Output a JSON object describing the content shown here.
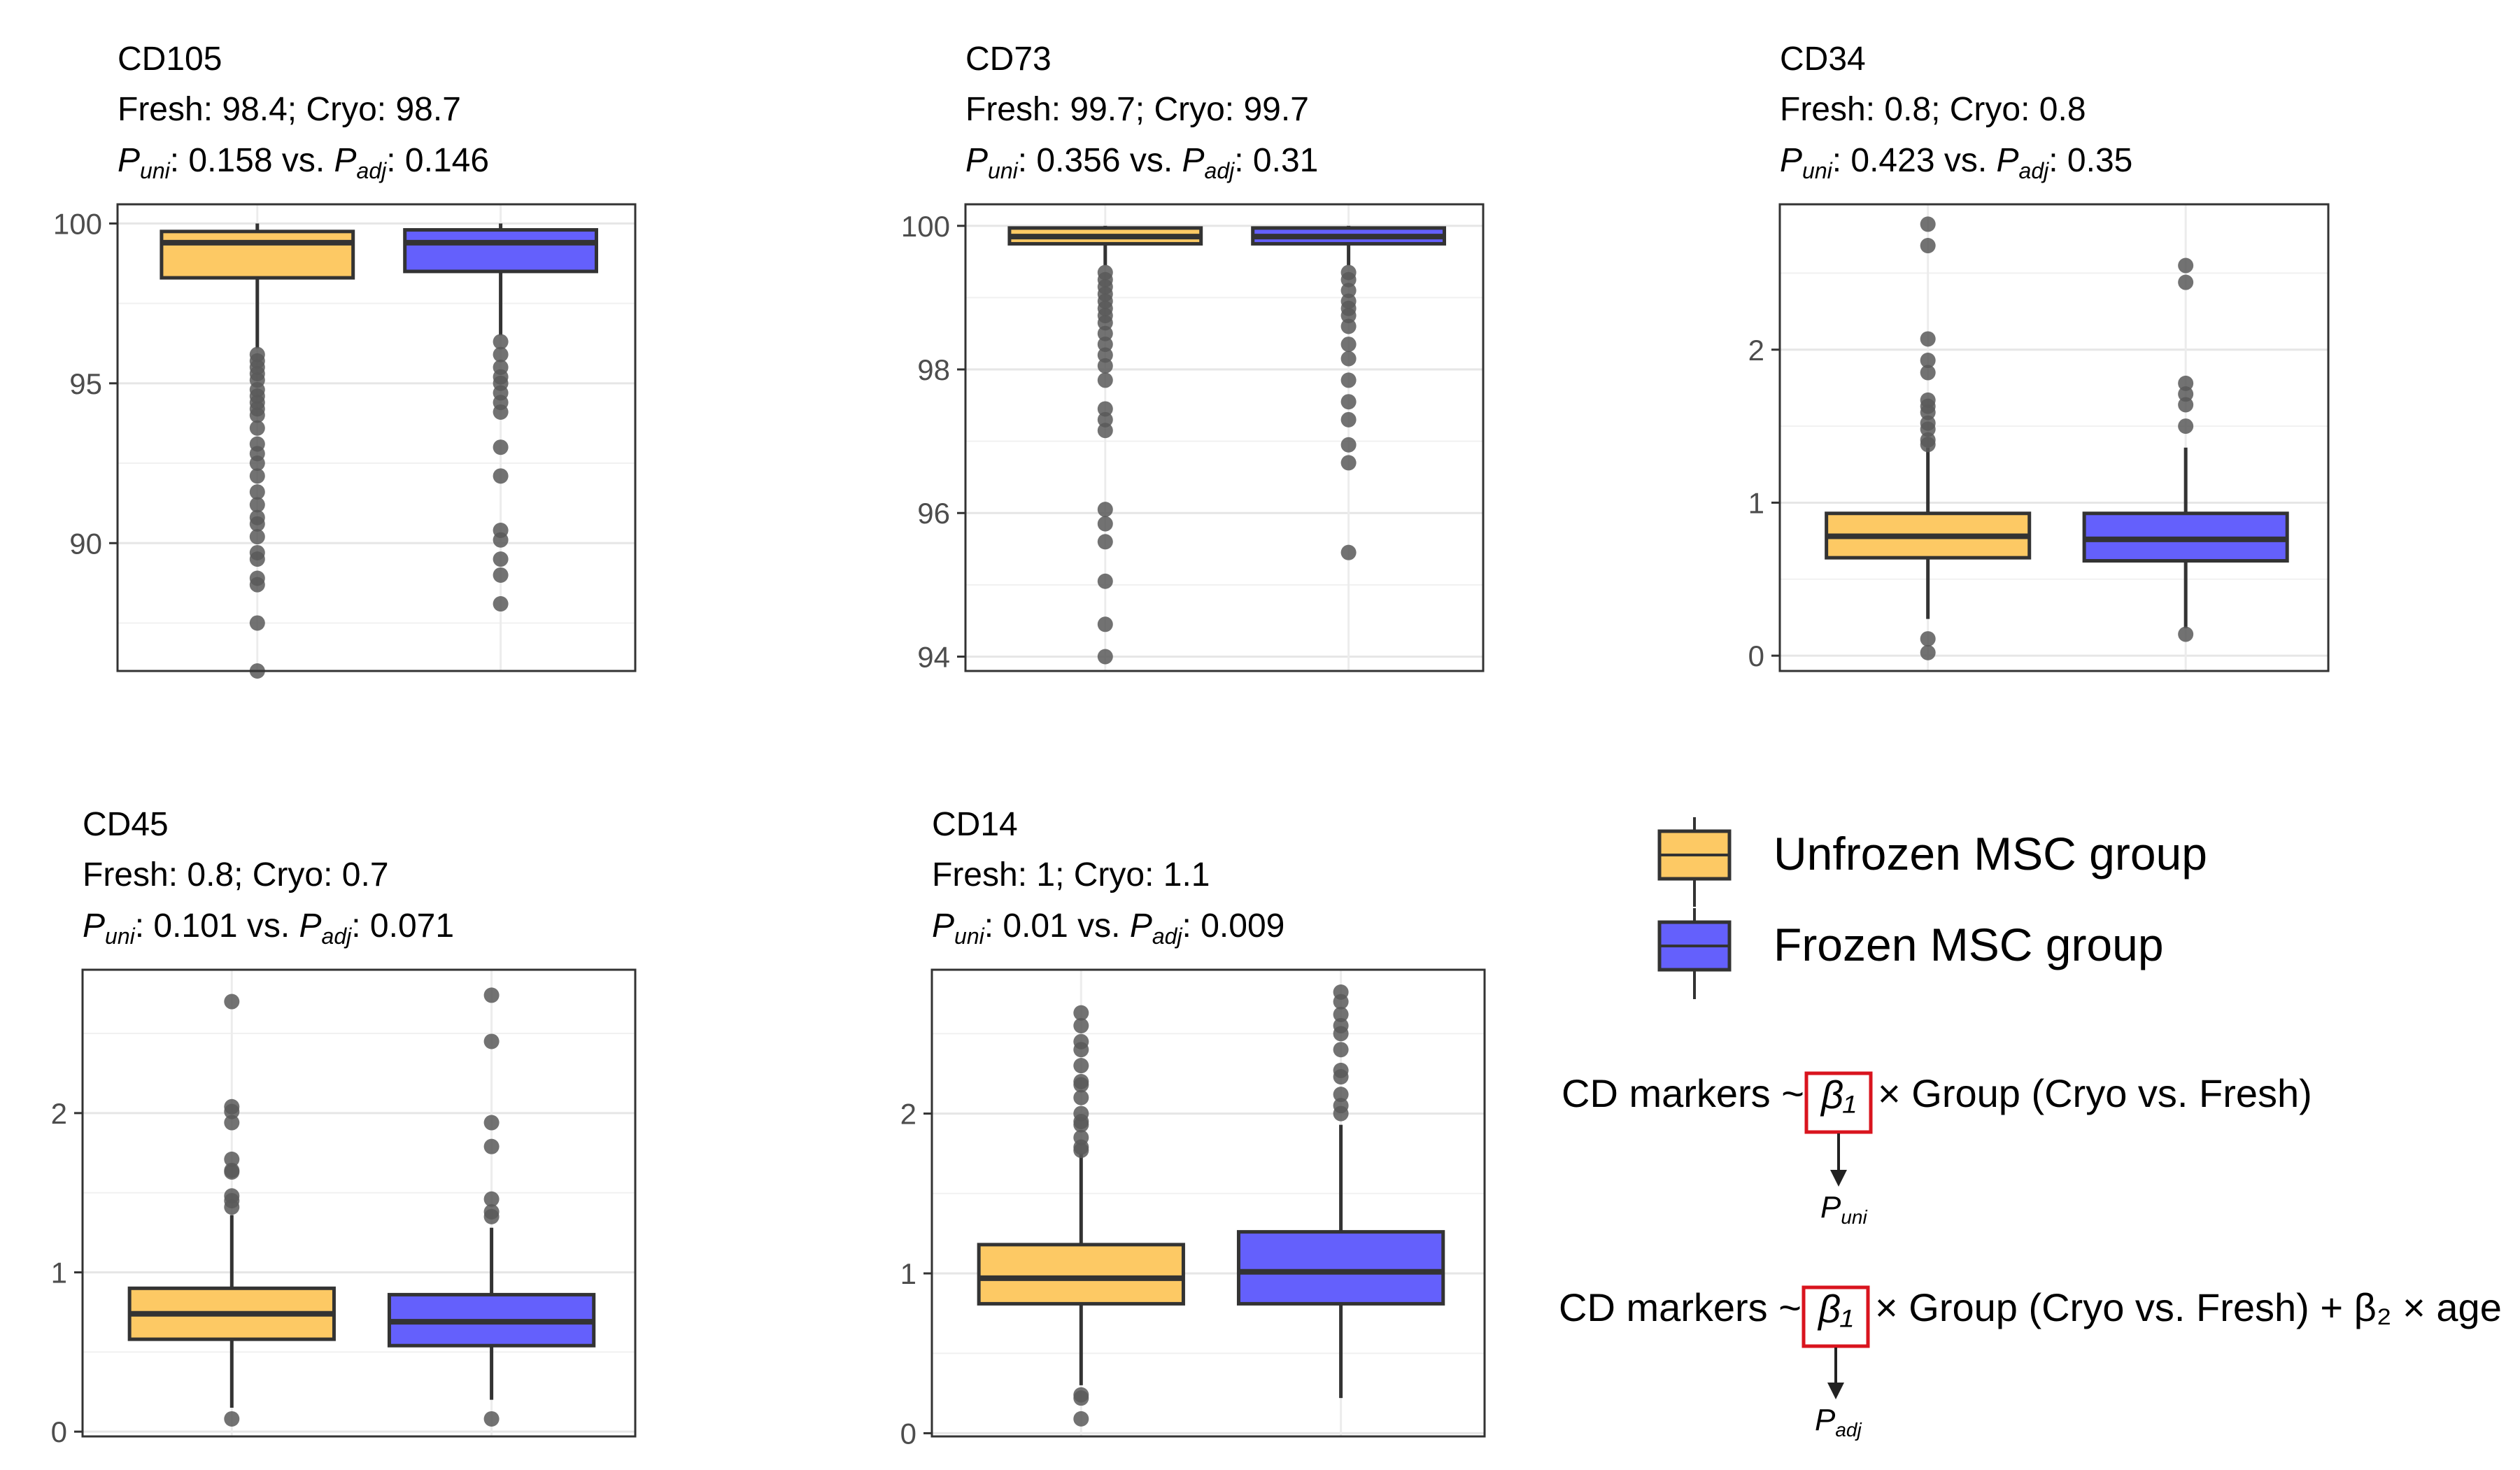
{
  "chart_data": [
    {
      "type": "box",
      "title": "CD105",
      "stats_line": "Fresh: 98.4; Cryo: 98.7",
      "p_values": {
        "p_uni": "0.158",
        "p_adj": "0.146"
      },
      "ylim": [
        86,
        100.6
      ],
      "yticks": [
        90,
        95,
        100
      ],
      "groups": [
        {
          "name": "Fresh",
          "q1": 98.3,
          "median": 99.4,
          "q3": 99.75,
          "whisker_low": 96.1,
          "whisker_high": 100,
          "outliers": [
            95.9,
            95.7,
            95.5,
            95.3,
            95.1,
            94.8,
            94.6,
            94.4,
            94.2,
            94.0,
            93.6,
            93.1,
            92.8,
            92.5,
            92.1,
            91.6,
            91.2,
            90.8,
            90.6,
            90.2,
            89.7,
            89.5,
            88.9,
            88.7,
            87.5,
            86.0
          ]
        },
        {
          "name": "Cryo",
          "q1": 98.5,
          "median": 99.4,
          "q3": 99.8,
          "whisker_low": 96.5,
          "whisker_high": 100,
          "outliers": [
            96.3,
            95.9,
            95.5,
            95.2,
            95.0,
            94.7,
            94.4,
            94.1,
            93.0,
            92.1,
            90.4,
            90.1,
            89.5,
            89.0,
            88.1
          ]
        }
      ]
    },
    {
      "type": "box",
      "title": "CD73",
      "stats_line": "Fresh: 99.7; Cryo: 99.7",
      "p_values": {
        "p_uni": "0.356",
        "p_adj": "0.31"
      },
      "ylim": [
        93.8,
        100.3
      ],
      "yticks": [
        94,
        96,
        98,
        100
      ],
      "groups": [
        {
          "name": "Fresh",
          "q1": 99.75,
          "median": 99.85,
          "q3": 99.97,
          "whisker_low": 99.45,
          "whisker_high": 100,
          "outliers": [
            99.35,
            99.25,
            99.15,
            99.05,
            98.95,
            98.85,
            98.75,
            98.65,
            98.5,
            98.35,
            98.2,
            98.05,
            97.85,
            97.45,
            97.3,
            97.15,
            96.05,
            95.85,
            95.6,
            95.05,
            94.45,
            94.0
          ]
        },
        {
          "name": "Cryo",
          "q1": 99.75,
          "median": 99.85,
          "q3": 99.97,
          "whisker_low": 99.45,
          "whisker_high": 100,
          "outliers": [
            99.35,
            99.25,
            99.1,
            98.95,
            98.85,
            98.75,
            98.6,
            98.35,
            98.15,
            97.85,
            97.55,
            97.3,
            96.95,
            96.7,
            95.45
          ]
        }
      ]
    },
    {
      "type": "box",
      "title": "CD34",
      "stats_line": "Fresh: 0.8; Cryo: 0.8",
      "p_values": {
        "p_uni": "0.423",
        "p_adj": "0.35"
      },
      "ylim": [
        -0.1,
        2.95
      ],
      "yticks": [
        0,
        1,
        2
      ],
      "groups": [
        {
          "name": "Fresh",
          "q1": 0.64,
          "median": 0.78,
          "q3": 0.93,
          "whisker_low": 0.24,
          "whisker_high": 1.36,
          "outliers": [
            2.82,
            2.68,
            2.07,
            1.93,
            1.85,
            1.67,
            1.63,
            1.59,
            1.52,
            1.48,
            1.41,
            1.38,
            0.11,
            0.02
          ]
        },
        {
          "name": "Cryo",
          "q1": 0.62,
          "median": 0.76,
          "q3": 0.93,
          "whisker_low": 0.18,
          "whisker_high": 1.36,
          "outliers": [
            2.55,
            2.44,
            1.78,
            1.71,
            1.64,
            1.5,
            0.14
          ]
        }
      ]
    },
    {
      "type": "box",
      "title": "CD45",
      "stats_line": "Fresh: 0.8; Cryo: 0.7",
      "p_values": {
        "p_uni": "0.101",
        "p_adj": "0.071"
      },
      "ylim": [
        -0.03,
        2.9
      ],
      "yticks": [
        0,
        1,
        2
      ],
      "groups": [
        {
          "name": "Fresh",
          "q1": 0.58,
          "median": 0.74,
          "q3": 0.9,
          "whisker_low": 0.15,
          "whisker_high": 1.36,
          "outliers": [
            2.7,
            2.04,
            2.01,
            1.94,
            1.71,
            1.64,
            1.63,
            1.48,
            1.45,
            1.41,
            0.08
          ]
        },
        {
          "name": "Cryo",
          "q1": 0.54,
          "median": 0.69,
          "q3": 0.86,
          "whisker_low": 0.2,
          "whisker_high": 1.28,
          "outliers": [
            2.74,
            2.45,
            1.94,
            1.79,
            1.46,
            1.38,
            1.35,
            0.08
          ]
        }
      ]
    },
    {
      "type": "box",
      "title": "CD14",
      "stats_line": "Fresh: 1; Cryo: 1.1",
      "p_values": {
        "p_uni": "0.01",
        "p_adj": "0.009"
      },
      "ylim": [
        -0.02,
        2.9
      ],
      "yticks": [
        0,
        1,
        2
      ],
      "groups": [
        {
          "name": "Fresh",
          "q1": 0.81,
          "median": 0.97,
          "q3": 1.18,
          "whisker_low": 0.3,
          "whisker_high": 1.75,
          "outliers": [
            2.63,
            2.55,
            2.45,
            2.4,
            2.3,
            2.2,
            2.18,
            2.1,
            2.0,
            1.95,
            1.93,
            1.85,
            1.79,
            1.77,
            0.24,
            0.22,
            0.09
          ]
        },
        {
          "name": "Cryo",
          "q1": 0.81,
          "median": 1.01,
          "q3": 1.26,
          "whisker_low": 0.22,
          "whisker_high": 1.93,
          "outliers": [
            2.76,
            2.7,
            2.62,
            2.55,
            2.5,
            2.4,
            2.27,
            2.23,
            2.12,
            2.05,
            2.0
          ]
        }
      ]
    }
  ],
  "legend": {
    "items": [
      {
        "label": "Unfrozen MSC group",
        "color": "#fdc964"
      },
      {
        "label": "Frozen MSC group",
        "color": "#6460fc"
      }
    ]
  },
  "colors": {
    "fresh_fill": "#fdc964",
    "cryo_fill": "#6460fc",
    "outlier": "#595959",
    "line": "#333333",
    "highlight_box": "#d9141e"
  },
  "equations": [
    {
      "prefix": "CD markers ~",
      "coef": "β₁",
      "suffix": "× Group (Cryo vs. Fresh)",
      "arrow_target": "uni"
    },
    {
      "prefix": "CD markers ~",
      "coef": "β₁",
      "suffix": "× Group (Cryo vs. Fresh) + β₂ × age",
      "arrow_target": "adj"
    }
  ],
  "labels": {
    "p": "P",
    "uni": "uni",
    "adj": "adj",
    "vs": "vs."
  }
}
